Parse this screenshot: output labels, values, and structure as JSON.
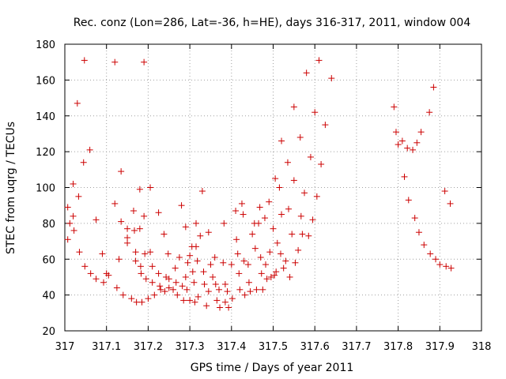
{
  "chart_data": {
    "type": "scatter",
    "title": "Rec. conz (Lon=286, Lat=-36, h=HE), days 316-317, 2011, window 004",
    "xlabel": "GPS time / Days of year 2011",
    "ylabel": "STEC from uqrg / TECUs",
    "xlim": [
      317,
      318
    ],
    "ylim": [
      20,
      180
    ],
    "xticks": [
      "317",
      "317.1",
      "317.2",
      "317.3",
      "317.4",
      "317.5",
      "317.6",
      "317.7",
      "317.8",
      "317.9",
      "318"
    ],
    "yticks": [
      "20",
      "40",
      "60",
      "80",
      "100",
      "120",
      "140",
      "160",
      "180"
    ],
    "grid": true,
    "marker": "+",
    "color": "#cc0000",
    "points": [
      [
        317.007,
        89
      ],
      [
        317.007,
        71
      ],
      [
        317.012,
        80
      ],
      [
        317.02,
        102
      ],
      [
        317.02,
        84
      ],
      [
        317.022,
        76
      ],
      [
        317.03,
        147
      ],
      [
        317.033,
        95
      ],
      [
        317.035,
        64
      ],
      [
        317.045,
        114
      ],
      [
        317.047,
        171
      ],
      [
        317.048,
        56
      ],
      [
        317.06,
        121
      ],
      [
        317.062,
        52
      ],
      [
        317.075,
        82
      ],
      [
        317.075,
        49
      ],
      [
        317.09,
        63
      ],
      [
        317.093,
        47
      ],
      [
        317.1,
        52
      ],
      [
        317.105,
        51
      ],
      [
        317.12,
        170
      ],
      [
        317.12,
        91
      ],
      [
        317.125,
        44
      ],
      [
        317.13,
        60
      ],
      [
        317.135,
        109
      ],
      [
        317.135,
        81
      ],
      [
        317.14,
        40
      ],
      [
        317.15,
        77
      ],
      [
        317.15,
        72
      ],
      [
        317.15,
        69
      ],
      [
        317.16,
        38
      ],
      [
        317.165,
        87
      ],
      [
        317.167,
        76
      ],
      [
        317.17,
        64
      ],
      [
        317.17,
        59
      ],
      [
        317.172,
        36
      ],
      [
        317.18,
        99
      ],
      [
        317.18,
        77
      ],
      [
        317.182,
        56
      ],
      [
        317.183,
        52
      ],
      [
        317.185,
        36
      ],
      [
        317.19,
        170
      ],
      [
        317.19,
        84
      ],
      [
        317.192,
        63
      ],
      [
        317.195,
        49
      ],
      [
        317.2,
        38
      ],
      [
        317.205,
        100
      ],
      [
        317.205,
        64
      ],
      [
        317.21,
        56
      ],
      [
        317.21,
        47
      ],
      [
        317.215,
        40
      ],
      [
        317.225,
        86
      ],
      [
        317.225,
        52
      ],
      [
        317.228,
        45
      ],
      [
        317.23,
        43
      ],
      [
        317.238,
        74
      ],
      [
        317.24,
        42
      ],
      [
        317.243,
        50
      ],
      [
        317.248,
        63
      ],
      [
        317.25,
        49
      ],
      [
        317.25,
        44
      ],
      [
        317.26,
        43
      ],
      [
        317.265,
        55
      ],
      [
        317.267,
        47
      ],
      [
        317.27,
        40
      ],
      [
        317.275,
        61
      ],
      [
        317.28,
        90
      ],
      [
        317.282,
        45
      ],
      [
        317.285,
        37
      ],
      [
        317.29,
        78
      ],
      [
        317.29,
        50
      ],
      [
        317.293,
        43
      ],
      [
        317.295,
        58
      ],
      [
        317.3,
        62
      ],
      [
        317.3,
        37
      ],
      [
        317.305,
        67
      ],
      [
        317.307,
        53
      ],
      [
        317.31,
        47
      ],
      [
        317.312,
        36
      ],
      [
        317.315,
        80
      ],
      [
        317.315,
        67
      ],
      [
        317.318,
        59
      ],
      [
        317.32,
        39
      ],
      [
        317.325,
        73
      ],
      [
        317.33,
        98
      ],
      [
        317.333,
        53
      ],
      [
        317.335,
        46
      ],
      [
        317.34,
        34
      ],
      [
        317.345,
        75
      ],
      [
        317.345,
        42
      ],
      [
        317.35,
        57
      ],
      [
        317.355,
        50
      ],
      [
        317.36,
        61
      ],
      [
        317.362,
        46
      ],
      [
        317.365,
        37
      ],
      [
        317.37,
        43
      ],
      [
        317.372,
        33
      ],
      [
        317.38,
        58
      ],
      [
        317.382,
        80
      ],
      [
        317.385,
        46
      ],
      [
        317.385,
        36
      ],
      [
        317.39,
        42
      ],
      [
        317.393,
        33
      ],
      [
        317.4,
        57
      ],
      [
        317.402,
        38
      ],
      [
        317.41,
        87
      ],
      [
        317.412,
        71
      ],
      [
        317.415,
        63
      ],
      [
        317.418,
        52
      ],
      [
        317.42,
        43
      ],
      [
        317.425,
        91
      ],
      [
        317.428,
        85
      ],
      [
        317.43,
        59
      ],
      [
        317.432,
        40
      ],
      [
        317.44,
        57
      ],
      [
        317.442,
        47
      ],
      [
        317.445,
        42
      ],
      [
        317.45,
        74
      ],
      [
        317.455,
        80
      ],
      [
        317.457,
        66
      ],
      [
        317.46,
        43
      ],
      [
        317.465,
        80
      ],
      [
        317.468,
        89
      ],
      [
        317.47,
        61
      ],
      [
        317.472,
        52
      ],
      [
        317.475,
        43
      ],
      [
        317.48,
        83
      ],
      [
        317.482,
        57
      ],
      [
        317.485,
        49
      ],
      [
        317.49,
        92
      ],
      [
        317.492,
        64
      ],
      [
        317.495,
        50
      ],
      [
        317.5,
        77
      ],
      [
        317.503,
        51
      ],
      [
        317.505,
        105
      ],
      [
        317.507,
        53
      ],
      [
        317.51,
        69
      ],
      [
        317.515,
        100
      ],
      [
        317.518,
        63
      ],
      [
        317.52,
        126
      ],
      [
        317.52,
        85
      ],
      [
        317.525,
        55
      ],
      [
        317.53,
        59
      ],
      [
        317.535,
        114
      ],
      [
        317.537,
        88
      ],
      [
        317.54,
        50
      ],
      [
        317.545,
        74
      ],
      [
        317.55,
        145
      ],
      [
        317.55,
        104
      ],
      [
        317.553,
        58
      ],
      [
        317.56,
        65
      ],
      [
        317.565,
        128
      ],
      [
        317.567,
        84
      ],
      [
        317.57,
        74
      ],
      [
        317.575,
        97
      ],
      [
        317.58,
        164
      ],
      [
        317.585,
        73
      ],
      [
        317.59,
        117
      ],
      [
        317.595,
        82
      ],
      [
        317.6,
        142
      ],
      [
        317.605,
        95
      ],
      [
        317.61,
        171
      ],
      [
        317.615,
        113
      ],
      [
        317.625,
        135
      ],
      [
        317.64,
        161
      ],
      [
        317.79,
        145
      ],
      [
        317.795,
        131
      ],
      [
        317.8,
        124
      ],
      [
        317.81,
        126
      ],
      [
        317.815,
        106
      ],
      [
        317.822,
        122
      ],
      [
        317.825,
        93
      ],
      [
        317.835,
        121
      ],
      [
        317.84,
        83
      ],
      [
        317.845,
        125
      ],
      [
        317.85,
        75
      ],
      [
        317.855,
        131
      ],
      [
        317.862,
        68
      ],
      [
        317.875,
        142
      ],
      [
        317.877,
        63
      ],
      [
        317.885,
        156
      ],
      [
        317.89,
        60
      ],
      [
        317.9,
        57
      ],
      [
        317.912,
        98
      ],
      [
        317.915,
        56
      ],
      [
        317.925,
        91
      ],
      [
        317.927,
        55
      ]
    ]
  }
}
